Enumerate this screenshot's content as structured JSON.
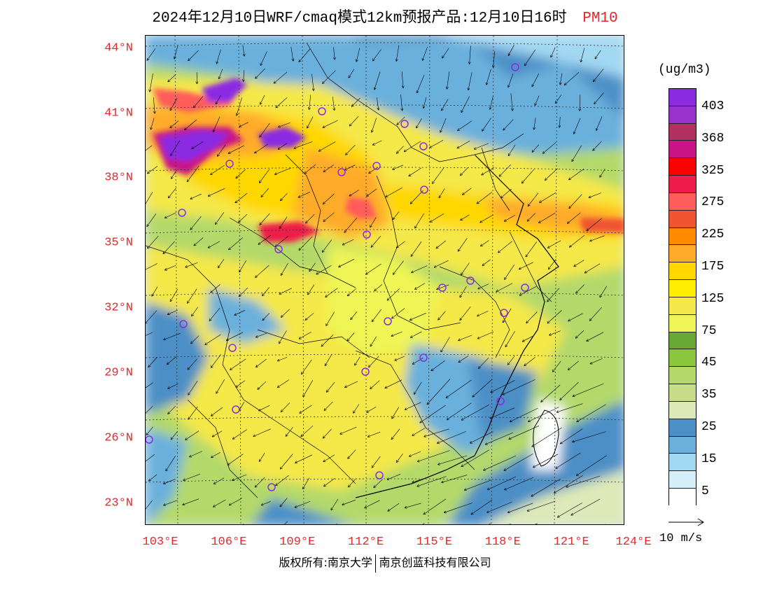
{
  "header": {
    "title": "2024年12月10日WRF/cmaq模式12km预报产品:12月10日16时",
    "variable": "PM10"
  },
  "map": {
    "lat_labels": [
      "44°N",
      "41°N",
      "38°N",
      "35°N",
      "32°N",
      "29°N",
      "26°N",
      "23°N"
    ],
    "lat_values": [
      44,
      41,
      38,
      35,
      32,
      29,
      26,
      23
    ],
    "lon_labels": [
      "103°E",
      "106°E",
      "109°E",
      "112°E",
      "115°E",
      "118°E",
      "121°E",
      "124°E"
    ],
    "lon_values": [
      103,
      106,
      109,
      112,
      115,
      118,
      121,
      124
    ],
    "extent": {
      "lon_min": 103,
      "lon_max": 124,
      "lat_min": 22,
      "lat_max": 44.6
    }
  },
  "legend": {
    "unit": "(ug/m3)",
    "colors": [
      "#8a2be2",
      "#9932cc",
      "#b03060",
      "#c71585",
      "#ff0000",
      "#ee1c4a",
      "#ff5c5c",
      "#ee5530",
      "#ff8c00",
      "#ffab2a",
      "#ffd700",
      "#ffed00",
      "#f5e84a",
      "#eef555",
      "#6aa834",
      "#8cc63f",
      "#b4d96a",
      "#c8dd88",
      "#dde9b8",
      "#4c8fc6",
      "#6ab0dc",
      "#a3d8f2",
      "#d4eefa",
      "#ffffff"
    ],
    "tick_labels": [
      "403",
      "368",
      "325",
      "275",
      "225",
      "175",
      "125",
      "75",
      "45",
      "35",
      "25",
      "15",
      "5"
    ]
  },
  "wind_reference": {
    "label": "10 m/s"
  },
  "footer": {
    "left": "版权所有:南京大学",
    "right": "南京创蓝科技有限公司"
  }
}
